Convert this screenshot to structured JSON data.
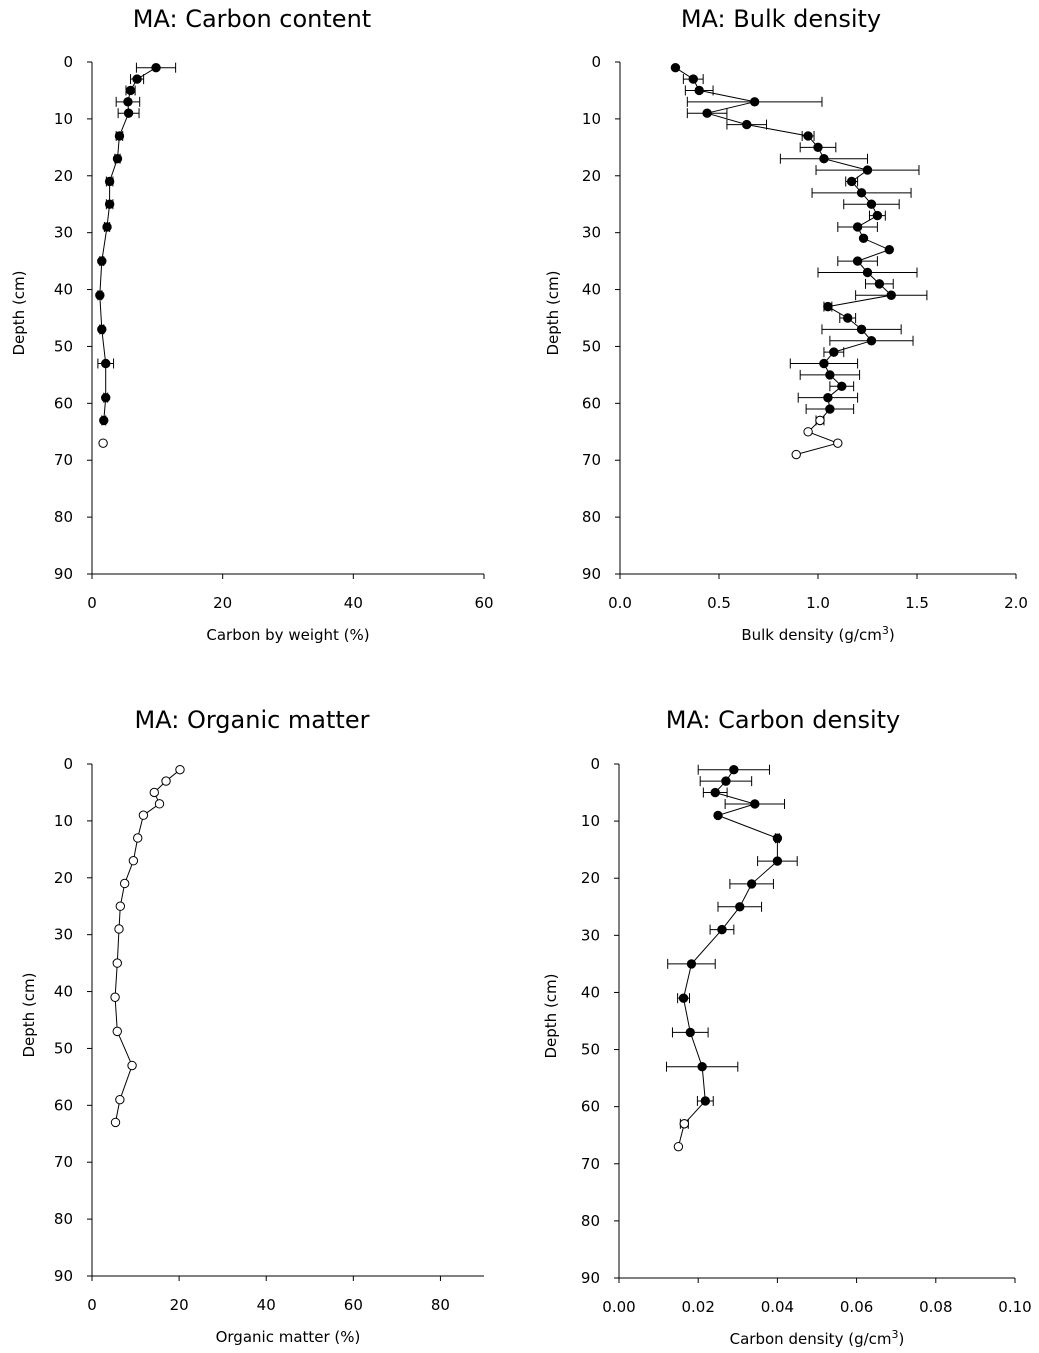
{
  "chart_data": [
    {
      "type": "scatter",
      "title": "MA: Carbon content",
      "xlabel": "Carbon by weight (%)",
      "xlabel_sup": "",
      "xlabel_suffix": "",
      "ylabel": "Depth (cm)",
      "xlim": [
        0,
        60
      ],
      "ylim": [
        0,
        90
      ],
      "y_inverted": true,
      "xticks": [
        "0",
        "20",
        "40",
        "60"
      ],
      "xtick_values": [
        0,
        20,
        40,
        60
      ],
      "yticks": [
        "0",
        "10",
        "20",
        "30",
        "40",
        "50",
        "60",
        "70",
        "80",
        "90"
      ],
      "ytick_values": [
        0,
        10,
        20,
        30,
        40,
        50,
        60,
        70,
        80,
        90
      ],
      "grid": false,
      "series": [
        {
          "marker": "filled-circle",
          "connected": true,
          "points": [
            {
              "x": 9.8,
              "y": 1,
              "xerr": 3.0
            },
            {
              "x": 6.9,
              "y": 3,
              "xerr": 1.0
            },
            {
              "x": 5.9,
              "y": 5,
              "xerr": 0.7
            },
            {
              "x": 5.5,
              "y": 7,
              "xerr": 1.8
            },
            {
              "x": 5.6,
              "y": 9,
              "xerr": 1.6
            },
            {
              "x": 4.2,
              "y": 13,
              "xerr": 0.5
            },
            {
              "x": 3.9,
              "y": 17,
              "xerr": 0.4
            },
            {
              "x": 2.7,
              "y": 21,
              "xerr": 0.5
            },
            {
              "x": 2.7,
              "y": 25,
              "xerr": 0.5
            },
            {
              "x": 2.3,
              "y": 29,
              "xerr": 0.4
            },
            {
              "x": 1.5,
              "y": 35,
              "xerr": 0.3
            },
            {
              "x": 1.2,
              "y": 41,
              "xerr": 0.3
            },
            {
              "x": 1.5,
              "y": 47,
              "xerr": 0.3
            },
            {
              "x": 2.1,
              "y": 53,
              "xerr": 1.2
            },
            {
              "x": 2.1,
              "y": 59,
              "xerr": 0.3
            },
            {
              "x": 1.8,
              "y": 63,
              "xerr": 0.3
            }
          ]
        },
        {
          "marker": "open-circle",
          "connected": false,
          "points": [
            {
              "x": 1.7,
              "y": 67
            }
          ]
        }
      ]
    },
    {
      "type": "scatter",
      "title": "MA: Bulk density",
      "xlabel": "Bulk density (g/cm",
      "xlabel_sup": "3",
      "xlabel_suffix": ")",
      "ylabel": "Depth (cm)",
      "xlim": [
        0,
        2
      ],
      "ylim": [
        0,
        90
      ],
      "y_inverted": true,
      "xticks": [
        "0.0",
        "0.5",
        "1.0",
        "1.5",
        "2.0"
      ],
      "xtick_values": [
        0,
        0.5,
        1,
        1.5,
        2
      ],
      "yticks": [
        "0",
        "10",
        "20",
        "30",
        "40",
        "50",
        "60",
        "70",
        "80",
        "90"
      ],
      "ytick_values": [
        0,
        10,
        20,
        30,
        40,
        50,
        60,
        70,
        80,
        90
      ],
      "grid": false,
      "series": [
        {
          "marker": "filled-circle",
          "connected": true,
          "points": [
            {
              "x": 0.28,
              "y": 1,
              "xerr": 0
            },
            {
              "x": 0.37,
              "y": 3,
              "xerr": 0.05
            },
            {
              "x": 0.4,
              "y": 5,
              "xerr": 0.07
            },
            {
              "x": 0.68,
              "y": 7,
              "xerr": 0.34
            },
            {
              "x": 0.44,
              "y": 9,
              "xerr": 0.1
            },
            {
              "x": 0.64,
              "y": 11,
              "xerr": 0.1
            },
            {
              "x": 0.95,
              "y": 13,
              "xerr": 0.03
            },
            {
              "x": 1.0,
              "y": 15,
              "xerr": 0.09
            },
            {
              "x": 1.03,
              "y": 17,
              "xerr": 0.22
            },
            {
              "x": 1.25,
              "y": 19,
              "xerr": 0.26
            },
            {
              "x": 1.17,
              "y": 21,
              "xerr": 0.03
            },
            {
              "x": 1.22,
              "y": 23,
              "xerr": 0.25
            },
            {
              "x": 1.27,
              "y": 25,
              "xerr": 0.14
            },
            {
              "x": 1.3,
              "y": 27,
              "xerr": 0.04
            },
            {
              "x": 1.2,
              "y": 29,
              "xerr": 0.1
            },
            {
              "x": 1.23,
              "y": 31,
              "xerr": 0
            },
            {
              "x": 1.36,
              "y": 33,
              "xerr": 0
            },
            {
              "x": 1.2,
              "y": 35,
              "xerr": 0.1
            },
            {
              "x": 1.25,
              "y": 37,
              "xerr": 0.25
            },
            {
              "x": 1.31,
              "y": 39,
              "xerr": 0.07
            },
            {
              "x": 1.37,
              "y": 41,
              "xerr": 0.18
            },
            {
              "x": 1.05,
              "y": 43,
              "xerr": 0.02
            },
            {
              "x": 1.15,
              "y": 45,
              "xerr": 0.04
            },
            {
              "x": 1.22,
              "y": 47,
              "xerr": 0.2
            },
            {
              "x": 1.27,
              "y": 49,
              "xerr": 0.21
            },
            {
              "x": 1.08,
              "y": 51,
              "xerr": 0.05
            },
            {
              "x": 1.03,
              "y": 53,
              "xerr": 0.17
            },
            {
              "x": 1.06,
              "y": 55,
              "xerr": 0.15
            },
            {
              "x": 1.12,
              "y": 57,
              "xerr": 0.06
            },
            {
              "x": 1.05,
              "y": 59,
              "xerr": 0.15
            },
            {
              "x": 1.06,
              "y": 61,
              "xerr": 0.12
            },
            {
              "x": 1.01,
              "y": 63,
              "xerr": 0.02
            }
          ]
        },
        {
          "marker": "open-circle",
          "connected": true,
          "points": [
            {
              "x": 1.01,
              "y": 63
            },
            {
              "x": 0.95,
              "y": 65
            },
            {
              "x": 1.1,
              "y": 67
            },
            {
              "x": 0.89,
              "y": 69
            }
          ]
        }
      ]
    },
    {
      "type": "scatter",
      "title": "MA: Organic matter",
      "xlabel": "Organic matter (%)",
      "xlabel_sup": "",
      "xlabel_suffix": "",
      "ylabel": "Depth (cm)",
      "xlim": [
        0,
        90
      ],
      "ylim": [
        0,
        90
      ],
      "y_inverted": true,
      "xticks": [
        "0",
        "20",
        "40",
        "60",
        "80"
      ],
      "xtick_values": [
        0,
        20,
        40,
        60,
        80
      ],
      "yticks": [
        "0",
        "10",
        "20",
        "30",
        "40",
        "50",
        "60",
        "70",
        "80",
        "90"
      ],
      "ytick_values": [
        0,
        10,
        20,
        30,
        40,
        50,
        60,
        70,
        80,
        90
      ],
      "grid": false,
      "series": [
        {
          "marker": "open-circle",
          "connected": true,
          "points": [
            {
              "x": 20.2,
              "y": 1
            },
            {
              "x": 17.0,
              "y": 3
            },
            {
              "x": 14.3,
              "y": 5
            },
            {
              "x": 15.5,
              "y": 7
            },
            {
              "x": 11.8,
              "y": 9
            },
            {
              "x": 10.5,
              "y": 13
            },
            {
              "x": 9.5,
              "y": 17
            },
            {
              "x": 7.5,
              "y": 21
            },
            {
              "x": 6.5,
              "y": 25
            },
            {
              "x": 6.2,
              "y": 29
            },
            {
              "x": 5.8,
              "y": 35
            },
            {
              "x": 5.3,
              "y": 41
            },
            {
              "x": 5.8,
              "y": 47
            },
            {
              "x": 9.2,
              "y": 53
            },
            {
              "x": 6.4,
              "y": 59
            },
            {
              "x": 5.4,
              "y": 63
            }
          ]
        }
      ]
    },
    {
      "type": "scatter",
      "title": "MA: Carbon density",
      "xlabel": "Carbon density (g/cm",
      "xlabel_sup": "3",
      "xlabel_suffix": ")",
      "ylabel": "Depth (cm)",
      "xlim": [
        0,
        0.1
      ],
      "ylim": [
        0,
        90
      ],
      "y_inverted": true,
      "xticks": [
        "0.00",
        "0.02",
        "0.04",
        "0.06",
        "0.08",
        "0.10"
      ],
      "xtick_values": [
        0,
        0.02,
        0.04,
        0.06,
        0.08,
        0.1
      ],
      "yticks": [
        "0",
        "10",
        "20",
        "30",
        "40",
        "50",
        "60",
        "70",
        "80",
        "90"
      ],
      "ytick_values": [
        0,
        10,
        20,
        30,
        40,
        50,
        60,
        70,
        80,
        90
      ],
      "grid": false,
      "series": [
        {
          "marker": "filled-circle",
          "connected": true,
          "points": [
            {
              "x": 0.029,
              "y": 1,
              "xerr": 0.009
            },
            {
              "x": 0.027,
              "y": 3,
              "xerr": 0.0065
            },
            {
              "x": 0.0243,
              "y": 5,
              "xerr": 0.003
            },
            {
              "x": 0.0343,
              "y": 7,
              "xerr": 0.0075
            },
            {
              "x": 0.025,
              "y": 9,
              "xerr": 0
            },
            {
              "x": 0.04,
              "y": 13,
              "xerr": 0.0005
            },
            {
              "x": 0.04,
              "y": 17,
              "xerr": 0.005
            },
            {
              "x": 0.0335,
              "y": 21,
              "xerr": 0.0055
            },
            {
              "x": 0.0305,
              "y": 25,
              "xerr": 0.0055
            },
            {
              "x": 0.026,
              "y": 29,
              "xerr": 0.003
            },
            {
              "x": 0.0183,
              "y": 35,
              "xerr": 0.006
            },
            {
              "x": 0.0163,
              "y": 41,
              "xerr": 0.0015
            },
            {
              "x": 0.018,
              "y": 47,
              "xerr": 0.0045
            },
            {
              "x": 0.021,
              "y": 53,
              "xerr": 0.009
            },
            {
              "x": 0.0218,
              "y": 59,
              "xerr": 0.002
            },
            {
              "x": 0.0165,
              "y": 63,
              "xerr": 0.001
            }
          ]
        },
        {
          "marker": "open-circle",
          "connected": true,
          "points": [
            {
              "x": 0.0165,
              "y": 63
            },
            {
              "x": 0.015,
              "y": 67
            }
          ]
        }
      ]
    }
  ]
}
